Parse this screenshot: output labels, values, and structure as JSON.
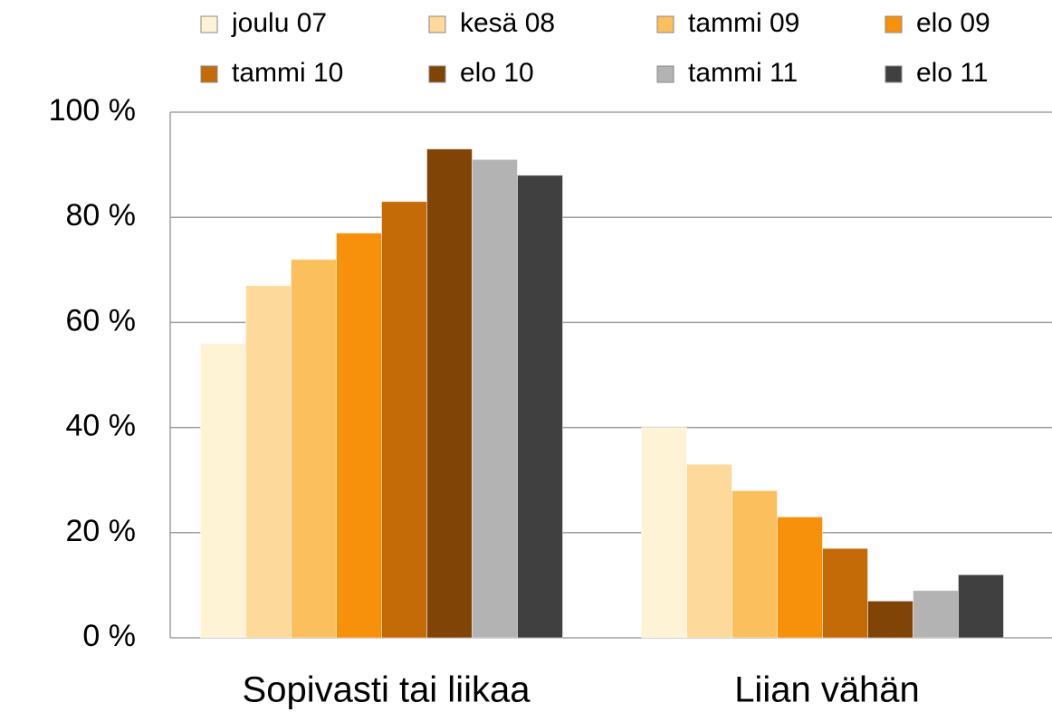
{
  "chart_data": {
    "type": "bar",
    "categories": [
      "Sopivasti tai liikaa",
      "Liian vähän"
    ],
    "series": [
      {
        "name": "joulu 07",
        "color": "#fff3d6",
        "values": [
          56,
          40
        ]
      },
      {
        "name": "kesä 08",
        "color": "#fdd99b",
        "values": [
          67,
          33
        ]
      },
      {
        "name": "tammi 09",
        "color": "#fbbf5e",
        "values": [
          72,
          28
        ]
      },
      {
        "name": "elo 09",
        "color": "#f7900a",
        "values": [
          77,
          23
        ]
      },
      {
        "name": "tammi 10",
        "color": "#c46a06",
        "values": [
          83,
          17
        ]
      },
      {
        "name": "elo 10",
        "color": "#7f4406",
        "values": [
          93,
          7
        ]
      },
      {
        "name": "tammi 11",
        "color": "#b3b3b3",
        "values": [
          91,
          9
        ]
      },
      {
        "name": "elo 11",
        "color": "#404040",
        "values": [
          88,
          12
        ]
      }
    ],
    "ylim": [
      0,
      100
    ],
    "yticks": [
      {
        "value": 0,
        "label": "0 %"
      },
      {
        "value": 20,
        "label": "20 %"
      },
      {
        "value": 40,
        "label": "40 %"
      },
      {
        "value": 60,
        "label": "60 %"
      },
      {
        "value": 80,
        "label": "80 %"
      },
      {
        "value": 100,
        "label": "100 %"
      }
    ],
    "grid": true,
    "legend": "top"
  }
}
